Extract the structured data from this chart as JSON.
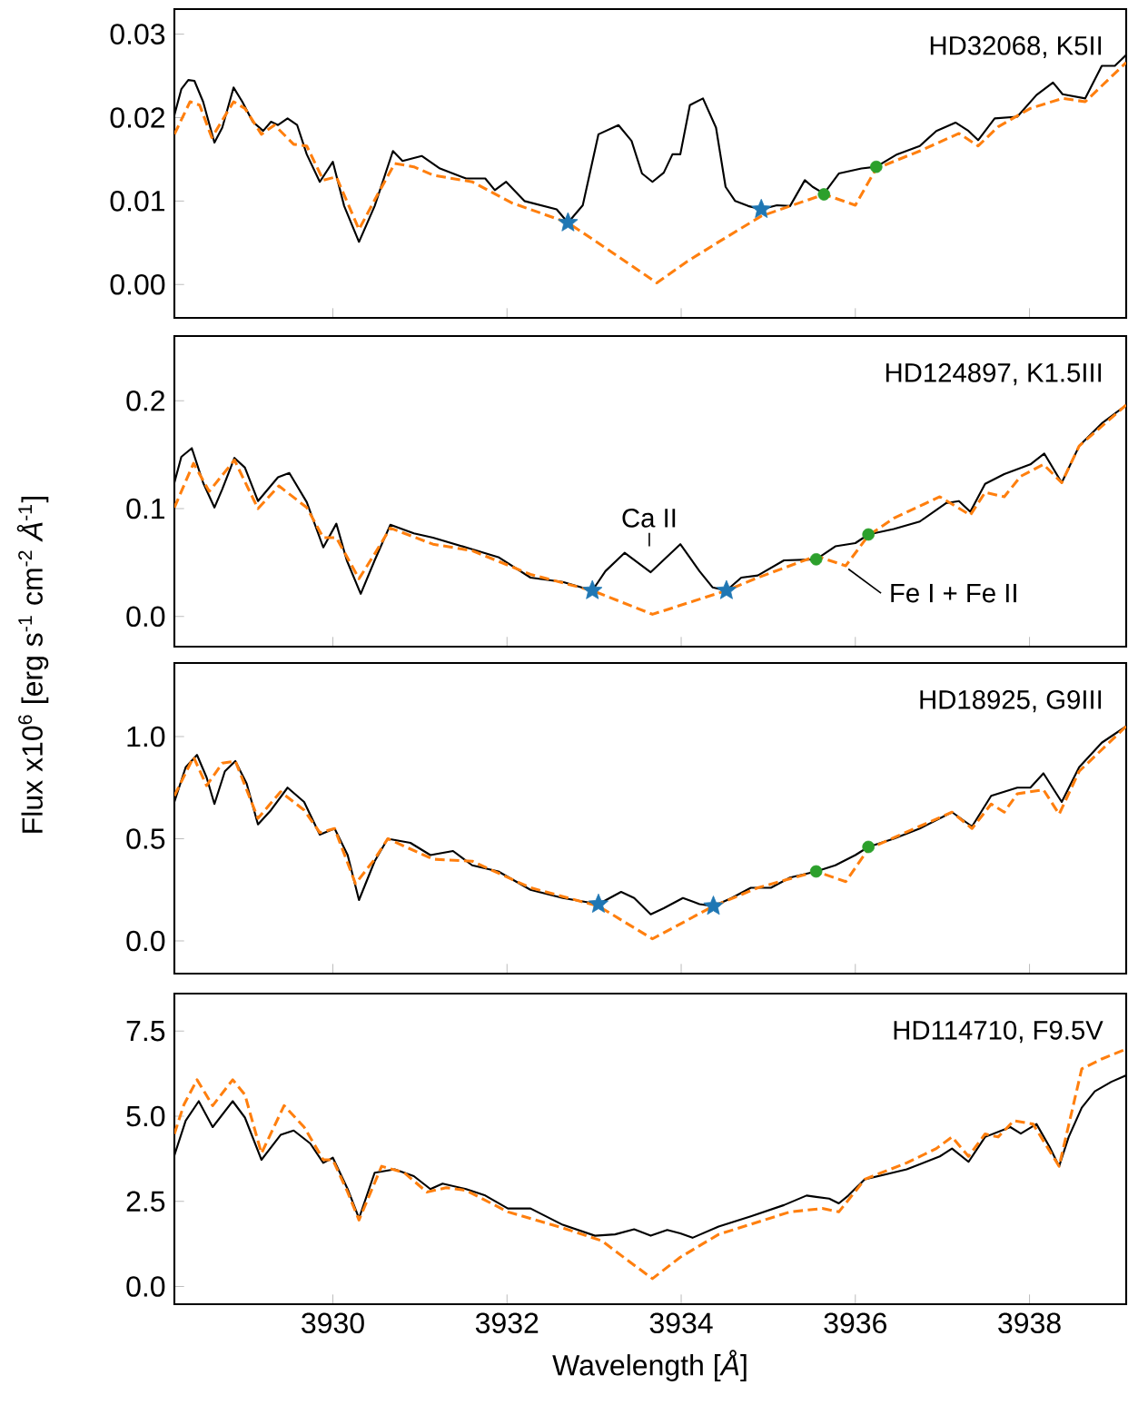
{
  "chart_data": [
    {
      "type": "line",
      "xlim": [
        3928.18,
        3939.11
      ],
      "ylim": [
        -0.004,
        0.033
      ],
      "xticks": [
        3930,
        3932,
        3934,
        3936,
        3938
      ],
      "yticks": [
        {
          "value": 0,
          "label": "0.00"
        },
        {
          "value": 0.01,
          "label": "0.01"
        },
        {
          "value": 0.02,
          "label": "0.02"
        },
        {
          "value": 0.03,
          "label": "0.03"
        }
      ],
      "tick_labels": "y",
      "annotations": [
        "HD32068, K5II"
      ],
      "series": [
        {
          "color": "#000000",
          "x": [
            3928.18,
            3928.26,
            3928.34,
            3928.41,
            3928.51,
            3928.64,
            3928.73,
            3928.86,
            3928.96,
            3929.08,
            3929.2,
            3929.29,
            3929.37,
            3929.48,
            3929.59,
            3929.7,
            3929.85,
            3930.0,
            3930.13,
            3930.3,
            3930.48,
            3930.69,
            3930.8,
            3931.02,
            3931.23,
            3931.53,
            3931.75,
            3931.86,
            3931.99,
            3932.2,
            3932.57,
            3932.7,
            3932.87,
            3933.05,
            3933.28,
            3933.43,
            3933.55,
            3933.67,
            3933.8,
            3933.9,
            3933.99,
            3934.1,
            3934.25,
            3934.4,
            3934.51,
            3934.62,
            3934.77,
            3934.92,
            3935.1,
            3935.25,
            3935.42,
            3935.51,
            3935.64,
            3935.81,
            3936.07,
            3936.24,
            3936.48,
            3936.74,
            3936.93,
            3937.15,
            3937.3,
            3937.41,
            3937.6,
            3937.86,
            3938.08,
            3938.27,
            3938.38,
            3938.64,
            3938.83,
            3938.98,
            3939.11
          ],
          "values": [
            0.0203,
            0.0234,
            0.0245,
            0.0244,
            0.0219,
            0.017,
            0.0188,
            0.0236,
            0.0219,
            0.0195,
            0.0184,
            0.0195,
            0.0191,
            0.0199,
            0.0191,
            0.0156,
            0.0123,
            0.0147,
            0.0094,
            0.0051,
            0.0094,
            0.016,
            0.0148,
            0.0154,
            0.0139,
            0.0127,
            0.0127,
            0.0113,
            0.0123,
            0.01,
            0.009,
            0.0074,
            0.0095,
            0.018,
            0.0191,
            0.0172,
            0.0133,
            0.0123,
            0.0134,
            0.0156,
            0.0156,
            0.0215,
            0.0223,
            0.0188,
            0.0117,
            0.01,
            0.0094,
            0.009,
            0.0095,
            0.0094,
            0.0125,
            0.0117,
            0.0109,
            0.0133,
            0.0139,
            0.0141,
            0.0156,
            0.0166,
            0.0184,
            0.0194,
            0.0184,
            0.0173,
            0.0199,
            0.0201,
            0.0227,
            0.0242,
            0.0228,
            0.0223,
            0.0262,
            0.0262,
            0.0275
          ]
        },
        {
          "color": "#ff7f0e",
          "line_style": "dashed",
          "x": [
            3928.18,
            3928.36,
            3928.47,
            3928.61,
            3928.86,
            3928.99,
            3929.18,
            3929.33,
            3929.55,
            3929.7,
            3929.89,
            3930.04,
            3930.3,
            3930.52,
            3930.71,
            3930.93,
            3931.15,
            3931.6,
            3932.05,
            3932.7,
            3933.2,
            3933.72,
            3934.06,
            3934.43,
            3934.92,
            3935.64,
            3936.0,
            3936.24,
            3936.74,
            3937.19,
            3937.41,
            3937.64,
            3938.01,
            3938.38,
            3938.64,
            3939.11
          ],
          "values": [
            0.018,
            0.0219,
            0.0215,
            0.0176,
            0.0219,
            0.0211,
            0.018,
            0.0191,
            0.0168,
            0.0166,
            0.0125,
            0.0129,
            0.0066,
            0.0109,
            0.0145,
            0.0141,
            0.0131,
            0.0123,
            0.0098,
            0.0074,
            0.0039,
            0.0002,
            0.0027,
            0.0051,
            0.0082,
            0.0108,
            0.0095,
            0.0139,
            0.016,
            0.0181,
            0.0166,
            0.0189,
            0.0211,
            0.0223,
            0.0219,
            0.0266
          ]
        },
        {
          "type": "scatter",
          "marker": "star",
          "color": "#1f77b4",
          "x": [
            3932.7,
            3934.92
          ],
          "values": [
            0.0074,
            0.009
          ]
        },
        {
          "type": "scatter",
          "marker": "circle",
          "color": "#2ca02c",
          "x": [
            3935.64,
            3936.24
          ],
          "values": [
            0.0108,
            0.0141
          ]
        }
      ]
    },
    {
      "type": "line",
      "xlim": [
        3928.18,
        3939.11
      ],
      "ylim": [
        -0.028,
        0.26
      ],
      "xticks": [
        3930,
        3932,
        3934,
        3936,
        3938
      ],
      "yticks": [
        {
          "value": 0,
          "label": "0.0"
        },
        {
          "value": 0.1,
          "label": "0.1"
        },
        {
          "value": 0.2,
          "label": "0.2"
        }
      ],
      "tick_labels": "y",
      "ylabel": "Flux x10$^{6}$ [erg s$^{-1}$ cm$^{-2}$ *Å*$^{-1}$]",
      "annotations": [
        "HD124897, K1.5III",
        "Ca II",
        {
          "text": "Fe I + Fe II",
          "x": 3935.92,
          "y": 0.044
        }
      ],
      "series": [
        {
          "color": "#000000",
          "x": [
            3928.18,
            3928.26,
            3928.38,
            3928.51,
            3928.64,
            3928.73,
            3928.87,
            3928.99,
            3929.14,
            3929.37,
            3929.5,
            3929.7,
            3929.89,
            3930.04,
            3930.16,
            3930.32,
            3930.48,
            3930.66,
            3930.93,
            3931.15,
            3931.53,
            3931.9,
            3932.27,
            3932.64,
            3932.98,
            3933.13,
            3933.35,
            3933.65,
            3933.99,
            3934.21,
            3934.36,
            3934.52,
            3934.69,
            3934.88,
            3935.18,
            3935.55,
            3935.77,
            3936.0,
            3936.15,
            3936.44,
            3936.74,
            3937.04,
            3937.19,
            3937.32,
            3937.49,
            3937.71,
            3938.01,
            3938.17,
            3938.37,
            3938.57,
            3938.83,
            3939.11
          ],
          "values": [
            0.124,
            0.148,
            0.156,
            0.124,
            0.101,
            0.118,
            0.147,
            0.138,
            0.107,
            0.129,
            0.133,
            0.106,
            0.064,
            0.086,
            0.052,
            0.021,
            0.052,
            0.085,
            0.077,
            0.073,
            0.064,
            0.055,
            0.036,
            0.032,
            0.024,
            0.042,
            0.059,
            0.041,
            0.067,
            0.042,
            0.027,
            0.024,
            0.036,
            0.038,
            0.052,
            0.053,
            0.065,
            0.068,
            0.076,
            0.081,
            0.088,
            0.105,
            0.107,
            0.097,
            0.123,
            0.132,
            0.141,
            0.151,
            0.124,
            0.158,
            0.179,
            0.196
          ]
        },
        {
          "color": "#ff7f0e",
          "line_style": "dashed",
          "x": [
            3928.18,
            3928.4,
            3928.58,
            3928.87,
            3929.14,
            3929.38,
            3929.7,
            3929.89,
            3930.04,
            3930.3,
            3930.48,
            3930.66,
            3931.15,
            3931.6,
            3932.27,
            3932.98,
            3933.67,
            3934.52,
            3934.88,
            3935.55,
            3935.89,
            3936.15,
            3936.44,
            3936.97,
            3937.32,
            3937.49,
            3937.71,
            3937.9,
            3938.16,
            3938.37,
            3938.57,
            3939.11
          ],
          "values": [
            0.101,
            0.142,
            0.116,
            0.145,
            0.1,
            0.121,
            0.101,
            0.073,
            0.073,
            0.035,
            0.058,
            0.082,
            0.067,
            0.061,
            0.039,
            0.024,
            0.002,
            0.024,
            0.036,
            0.056,
            0.047,
            0.075,
            0.091,
            0.111,
            0.094,
            0.115,
            0.111,
            0.13,
            0.141,
            0.124,
            0.158,
            0.196
          ]
        },
        {
          "type": "scatter",
          "marker": "star",
          "color": "#1f77b4",
          "x": [
            3932.98,
            3934.52
          ],
          "values": [
            0.024,
            0.024
          ]
        },
        {
          "type": "scatter",
          "marker": "circle",
          "color": "#2ca02c",
          "x": [
            3935.55,
            3936.15
          ],
          "values": [
            0.053,
            0.076
          ]
        }
      ]
    },
    {
      "type": "line",
      "xlim": [
        3928.18,
        3939.11
      ],
      "ylim": [
        -0.16,
        1.36
      ],
      "xticks": [
        3930,
        3932,
        3934,
        3936,
        3938
      ],
      "yticks": [
        {
          "value": 0,
          "label": "0.0"
        },
        {
          "value": 0.5,
          "label": "0.5"
        },
        {
          "value": 1,
          "label": "1.0"
        }
      ],
      "tick_labels": "y",
      "annotations": [
        "HD18925, G9III"
      ],
      "series": [
        {
          "color": "#000000",
          "x": [
            3928.18,
            3928.31,
            3928.44,
            3928.55,
            3928.64,
            3928.76,
            3928.88,
            3929.01,
            3929.14,
            3929.29,
            3929.48,
            3929.67,
            3929.85,
            3930.02,
            3930.17,
            3930.3,
            3930.48,
            3930.63,
            3930.89,
            3931.12,
            3931.38,
            3931.6,
            3931.9,
            3932.27,
            3932.64,
            3933.05,
            3933.31,
            3933.46,
            3933.65,
            3933.8,
            3934.02,
            3934.21,
            3934.37,
            3934.58,
            3934.8,
            3935.03,
            3935.25,
            3935.55,
            3935.77,
            3936.0,
            3936.15,
            3936.44,
            3936.74,
            3937.11,
            3937.34,
            3937.56,
            3937.86,
            3938.01,
            3938.16,
            3938.37,
            3938.57,
            3938.83,
            3939.11
          ],
          "values": [
            0.68,
            0.85,
            0.91,
            0.8,
            0.67,
            0.83,
            0.88,
            0.77,
            0.57,
            0.64,
            0.75,
            0.68,
            0.52,
            0.55,
            0.42,
            0.2,
            0.39,
            0.5,
            0.48,
            0.42,
            0.44,
            0.37,
            0.34,
            0.25,
            0.21,
            0.18,
            0.24,
            0.21,
            0.13,
            0.16,
            0.21,
            0.18,
            0.17,
            0.21,
            0.26,
            0.26,
            0.31,
            0.34,
            0.37,
            0.42,
            0.46,
            0.5,
            0.55,
            0.63,
            0.56,
            0.71,
            0.75,
            0.75,
            0.82,
            0.68,
            0.85,
            0.97,
            1.05
          ]
        },
        {
          "color": "#ff7f0e",
          "line_style": "dashed",
          "x": [
            3928.18,
            3928.4,
            3928.55,
            3928.73,
            3928.88,
            3929.14,
            3929.4,
            3929.67,
            3929.85,
            3930.02,
            3930.26,
            3930.48,
            3930.63,
            3931.15,
            3931.6,
            3932.27,
            3933.05,
            3933.67,
            3934.37,
            3934.88,
            3935.55,
            3935.89,
            3936.15,
            3936.52,
            3937.11,
            3937.34,
            3937.56,
            3937.71,
            3937.86,
            3938.16,
            3938.34,
            3938.57,
            3939.11
          ],
          "values": [
            0.71,
            0.9,
            0.76,
            0.87,
            0.88,
            0.6,
            0.73,
            0.64,
            0.53,
            0.55,
            0.28,
            0.4,
            0.5,
            0.4,
            0.39,
            0.26,
            0.17,
            0.01,
            0.17,
            0.26,
            0.34,
            0.29,
            0.45,
            0.52,
            0.63,
            0.55,
            0.67,
            0.63,
            0.72,
            0.74,
            0.62,
            0.83,
            1.05
          ]
        },
        {
          "type": "scatter",
          "marker": "star",
          "color": "#1f77b4",
          "x": [
            3933.05,
            3934.37
          ],
          "values": [
            0.18,
            0.17
          ]
        },
        {
          "type": "scatter",
          "marker": "circle",
          "color": "#2ca02c",
          "x": [
            3935.55,
            3936.15
          ],
          "values": [
            0.34,
            0.46
          ]
        }
      ]
    },
    {
      "type": "line",
      "xlim": [
        3928.18,
        3939.11
      ],
      "ylim": [
        -0.52,
        8.6
      ],
      "xticks": [
        3930,
        3932,
        3934,
        3936,
        3938
      ],
      "yticks": [
        {
          "value": 0,
          "label": "0.0"
        },
        {
          "value": 2.5,
          "label": "2.5"
        },
        {
          "value": 5,
          "label": "5.0"
        },
        {
          "value": 7.5,
          "label": "7.5"
        }
      ],
      "xlabel": "Wavelength [*Å*]",
      "annotations": [
        "HD114710, F9.5V"
      ],
      "series": [
        {
          "color": "#000000",
          "x": [
            3928.18,
            3928.31,
            3928.46,
            3928.62,
            3928.85,
            3928.99,
            3929.18,
            3929.4,
            3929.55,
            3929.74,
            3929.89,
            3930.0,
            3930.17,
            3930.3,
            3930.48,
            3930.71,
            3930.93,
            3931.12,
            3931.26,
            3931.53,
            3931.75,
            3932.01,
            3932.27,
            3932.64,
            3933.01,
            3933.24,
            3933.46,
            3933.65,
            3933.84,
            3933.99,
            3934.13,
            3934.43,
            3934.8,
            3935.18,
            3935.44,
            3935.55,
            3935.7,
            3935.81,
            3935.92,
            3936.11,
            3936.33,
            3936.59,
            3936.97,
            3937.11,
            3937.3,
            3937.49,
            3937.78,
            3937.9,
            3938.08,
            3938.23,
            3938.34,
            3938.45,
            3938.6,
            3938.75,
            3938.94,
            3939.11
          ],
          "values": [
            3.85,
            4.87,
            5.44,
            4.68,
            5.44,
            4.96,
            3.72,
            4.45,
            4.58,
            4.2,
            3.63,
            3.78,
            2.86,
            2.0,
            3.34,
            3.44,
            3.24,
            2.86,
            3.02,
            2.86,
            2.67,
            2.29,
            2.29,
            1.81,
            1.49,
            1.53,
            1.68,
            1.49,
            1.66,
            1.56,
            1.43,
            1.76,
            2.06,
            2.39,
            2.67,
            2.63,
            2.58,
            2.44,
            2.67,
            3.15,
            3.28,
            3.44,
            3.82,
            4.05,
            3.66,
            4.39,
            4.68,
            4.49,
            4.77,
            4.1,
            3.53,
            4.39,
            5.25,
            5.73,
            6.01,
            6.2
          ]
        },
        {
          "color": "#ff7f0e",
          "line_style": "dashed",
          "x": [
            3928.18,
            3928.29,
            3928.44,
            3928.62,
            3928.85,
            3928.99,
            3929.18,
            3929.44,
            3929.67,
            3929.89,
            3930.0,
            3930.17,
            3930.3,
            3930.56,
            3930.82,
            3931.08,
            3931.3,
            3931.53,
            3932.01,
            3932.64,
            3933.09,
            3933.39,
            3933.67,
            3933.99,
            3934.43,
            3935.25,
            3935.62,
            3935.81,
            3936.11,
            3936.59,
            3936.93,
            3937.11,
            3937.3,
            3937.49,
            3937.64,
            3937.82,
            3938.04,
            3938.34,
            3938.6,
            3938.83,
            3939.11
          ],
          "values": [
            4.48,
            5.34,
            6.07,
            5.31,
            6.07,
            5.63,
            3.91,
            5.31,
            4.68,
            3.72,
            3.72,
            2.77,
            1.95,
            3.53,
            3.34,
            2.77,
            2.9,
            2.82,
            2.19,
            1.72,
            1.34,
            0.76,
            0.23,
            0.86,
            1.53,
            2.19,
            2.29,
            2.19,
            3.15,
            3.63,
            4.05,
            4.39,
            3.82,
            4.48,
            4.39,
            4.87,
            4.77,
            3.53,
            6.39,
            6.68,
            6.97
          ]
        }
      ]
    }
  ]
}
